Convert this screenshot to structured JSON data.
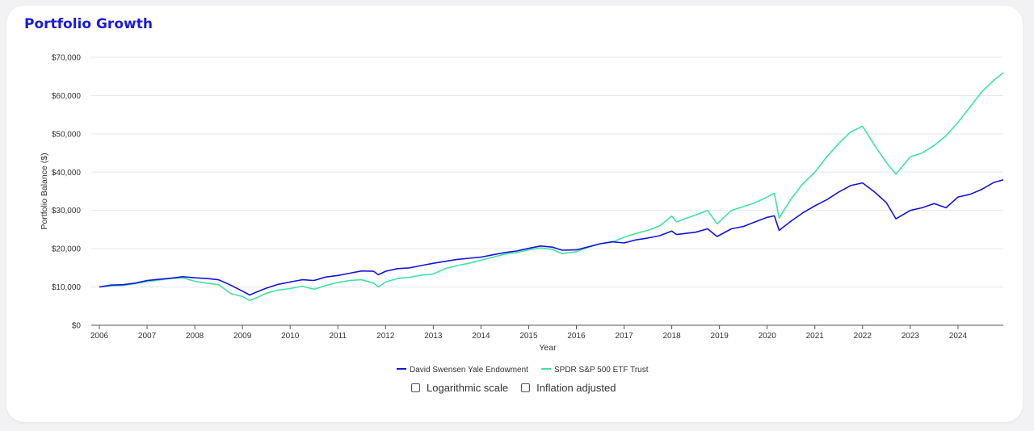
{
  "page": {
    "title": "Portfolio Growth"
  },
  "colors": {
    "title": "#1a1adb",
    "yale": "#1414d9",
    "spy": "#3ee3a3"
  },
  "options": [
    {
      "label": "Logarithmic scale",
      "checked": false
    },
    {
      "label": "Inflation adjusted",
      "checked": false
    }
  ],
  "chart_data": {
    "type": "line",
    "xlabel": "Year",
    "ylabel": "Portfolio Balance ($)",
    "xlim": [
      2006,
      2024.95
    ],
    "ylim": [
      0,
      70000
    ],
    "xticks": [
      "2006",
      "2007",
      "2008",
      "2009",
      "2010",
      "2011",
      "2012",
      "2013",
      "2014",
      "2015",
      "2016",
      "2017",
      "2018",
      "2019",
      "2020",
      "2021",
      "2022",
      "2023",
      "2024"
    ],
    "yticks": [
      "$0",
      "$10,000",
      "$20,000",
      "$30,000",
      "$40,000",
      "$50,000",
      "$60,000",
      "$70,000"
    ],
    "grid": "horizontal",
    "legend_position": "bottom-center",
    "series": [
      {
        "name": "David Swensen Yale Endowment",
        "color": "#1414d9",
        "points": [
          [
            2006.0,
            10000
          ],
          [
            2006.25,
            10500
          ],
          [
            2006.5,
            10600
          ],
          [
            2006.75,
            11000
          ],
          [
            2007.0,
            11700
          ],
          [
            2007.25,
            12000
          ],
          [
            2007.5,
            12300
          ],
          [
            2007.75,
            12700
          ],
          [
            2008.0,
            12400
          ],
          [
            2008.25,
            12200
          ],
          [
            2008.5,
            11900
          ],
          [
            2008.75,
            10500
          ],
          [
            2009.0,
            8900
          ],
          [
            2009.15,
            7900
          ],
          [
            2009.3,
            8700
          ],
          [
            2009.5,
            9700
          ],
          [
            2009.75,
            10700
          ],
          [
            2010.0,
            11300
          ],
          [
            2010.25,
            11900
          ],
          [
            2010.5,
            11700
          ],
          [
            2010.75,
            12600
          ],
          [
            2011.0,
            13000
          ],
          [
            2011.25,
            13600
          ],
          [
            2011.5,
            14200
          ],
          [
            2011.75,
            14100
          ],
          [
            2011.85,
            13200
          ],
          [
            2012.0,
            14100
          ],
          [
            2012.25,
            14800
          ],
          [
            2012.5,
            15000
          ],
          [
            2012.75,
            15600
          ],
          [
            2013.0,
            16200
          ],
          [
            2013.25,
            16700
          ],
          [
            2013.5,
            17200
          ],
          [
            2013.75,
            17500
          ],
          [
            2014.0,
            17800
          ],
          [
            2014.25,
            18400
          ],
          [
            2014.5,
            19000
          ],
          [
            2014.75,
            19400
          ],
          [
            2015.0,
            20100
          ],
          [
            2015.25,
            20700
          ],
          [
            2015.5,
            20400
          ],
          [
            2015.7,
            19600
          ],
          [
            2016.0,
            19700
          ],
          [
            2016.25,
            20500
          ],
          [
            2016.5,
            21300
          ],
          [
            2016.75,
            21800
          ],
          [
            2017.0,
            21500
          ],
          [
            2017.25,
            22300
          ],
          [
            2017.5,
            22800
          ],
          [
            2017.75,
            23400
          ],
          [
            2018.0,
            24600
          ],
          [
            2018.1,
            23700
          ],
          [
            2018.5,
            24300
          ],
          [
            2018.75,
            25200
          ],
          [
            2018.95,
            23200
          ],
          [
            2019.25,
            25200
          ],
          [
            2019.5,
            25800
          ],
          [
            2019.75,
            27000
          ],
          [
            2020.0,
            28200
          ],
          [
            2020.15,
            28600
          ],
          [
            2020.25,
            24800
          ],
          [
            2020.5,
            27200
          ],
          [
            2020.75,
            29400
          ],
          [
            2021.0,
            31200
          ],
          [
            2021.25,
            32800
          ],
          [
            2021.5,
            34800
          ],
          [
            2021.75,
            36500
          ],
          [
            2022.0,
            37200
          ],
          [
            2022.25,
            34800
          ],
          [
            2022.5,
            32000
          ],
          [
            2022.7,
            27800
          ],
          [
            2023.0,
            30000
          ],
          [
            2023.25,
            30700
          ],
          [
            2023.5,
            31800
          ],
          [
            2023.75,
            30700
          ],
          [
            2024.0,
            33500
          ],
          [
            2024.25,
            34200
          ],
          [
            2024.5,
            35500
          ],
          [
            2024.75,
            37300
          ],
          [
            2024.95,
            38000
          ]
        ]
      },
      {
        "name": "SPDR S&P 500 ETF Trust",
        "color": "#3ee3a3",
        "points": [
          [
            2006.0,
            10000
          ],
          [
            2006.25,
            10300
          ],
          [
            2006.5,
            10400
          ],
          [
            2006.75,
            10900
          ],
          [
            2007.0,
            11400
          ],
          [
            2007.25,
            11800
          ],
          [
            2007.5,
            12200
          ],
          [
            2007.75,
            12400
          ],
          [
            2008.0,
            11500
          ],
          [
            2008.25,
            11000
          ],
          [
            2008.5,
            10600
          ],
          [
            2008.75,
            8300
          ],
          [
            2009.0,
            7500
          ],
          [
            2009.15,
            6500
          ],
          [
            2009.3,
            7200
          ],
          [
            2009.5,
            8400
          ],
          [
            2009.75,
            9200
          ],
          [
            2010.0,
            9600
          ],
          [
            2010.25,
            10200
          ],
          [
            2010.5,
            9400
          ],
          [
            2010.75,
            10400
          ],
          [
            2011.0,
            11200
          ],
          [
            2011.25,
            11700
          ],
          [
            2011.5,
            11900
          ],
          [
            2011.75,
            11000
          ],
          [
            2011.85,
            10000
          ],
          [
            2012.0,
            11300
          ],
          [
            2012.25,
            12200
          ],
          [
            2012.5,
            12500
          ],
          [
            2012.75,
            13100
          ],
          [
            2013.0,
            13400
          ],
          [
            2013.25,
            14800
          ],
          [
            2013.5,
            15600
          ],
          [
            2013.75,
            16200
          ],
          [
            2014.0,
            17000
          ],
          [
            2014.25,
            17800
          ],
          [
            2014.5,
            18600
          ],
          [
            2014.75,
            19000
          ],
          [
            2015.0,
            19700
          ],
          [
            2015.25,
            20200
          ],
          [
            2015.5,
            19800
          ],
          [
            2015.7,
            18700
          ],
          [
            2016.0,
            19200
          ],
          [
            2016.25,
            20400
          ],
          [
            2016.5,
            21300
          ],
          [
            2016.75,
            21700
          ],
          [
            2017.0,
            23000
          ],
          [
            2017.25,
            24000
          ],
          [
            2017.5,
            24800
          ],
          [
            2017.75,
            26000
          ],
          [
            2018.0,
            28500
          ],
          [
            2018.1,
            27000
          ],
          [
            2018.5,
            28800
          ],
          [
            2018.75,
            30000
          ],
          [
            2018.95,
            26500
          ],
          [
            2019.25,
            30000
          ],
          [
            2019.5,
            31000
          ],
          [
            2019.75,
            32000
          ],
          [
            2020.0,
            33500
          ],
          [
            2020.15,
            34500
          ],
          [
            2020.25,
            28000
          ],
          [
            2020.5,
            33000
          ],
          [
            2020.75,
            37000
          ],
          [
            2021.0,
            40000
          ],
          [
            2021.25,
            44000
          ],
          [
            2021.5,
            47500
          ],
          [
            2021.75,
            50500
          ],
          [
            2022.0,
            52000
          ],
          [
            2022.25,
            47000
          ],
          [
            2022.5,
            42500
          ],
          [
            2022.7,
            39500
          ],
          [
            2023.0,
            44000
          ],
          [
            2023.25,
            45000
          ],
          [
            2023.5,
            47000
          ],
          [
            2023.75,
            49500
          ],
          [
            2024.0,
            53000
          ],
          [
            2024.25,
            57000
          ],
          [
            2024.5,
            61000
          ],
          [
            2024.75,
            64000
          ],
          [
            2024.95,
            66000
          ]
        ]
      }
    ]
  }
}
